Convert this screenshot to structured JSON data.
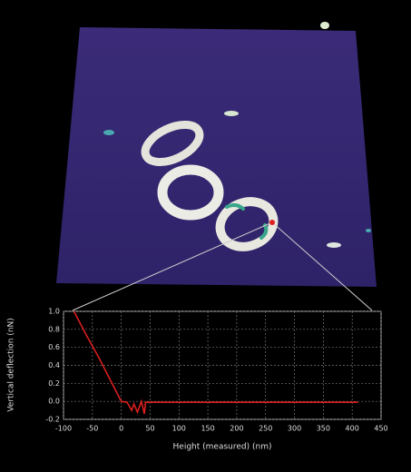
{
  "chart_data": {
    "type": "line",
    "xlabel": "Height (measured) (nm)",
    "ylabel": "Vertical deflection (nN)",
    "xlim": [
      -100,
      450
    ],
    "ylim": [
      -0.2,
      1.0
    ],
    "xticks": [
      -100,
      -50,
      0,
      50,
      100,
      150,
      200,
      250,
      300,
      350,
      400,
      450
    ],
    "yticks": [
      {
        "value": 1.0,
        "label": "1.0"
      },
      0.8,
      0.6,
      0.4,
      0.2,
      {
        "value": 0,
        "label": "0.0"
      },
      -0.2
    ],
    "grid": true,
    "series": [
      {
        "color": "#d81e1e",
        "x": [
          -82,
          -60,
          -40,
          -20,
          0,
          10,
          18,
          22,
          28,
          35,
          40,
          42,
          50,
          100,
          200,
          300,
          410
        ],
        "values": [
          1.0,
          0.73,
          0.5,
          0.25,
          0.0,
          -0.01,
          -0.1,
          -0.03,
          -0.12,
          0.0,
          -0.14,
          -0.01,
          -0.01,
          -0.01,
          -0.01,
          -0.01,
          -0.01
        ]
      }
    ]
  }
}
